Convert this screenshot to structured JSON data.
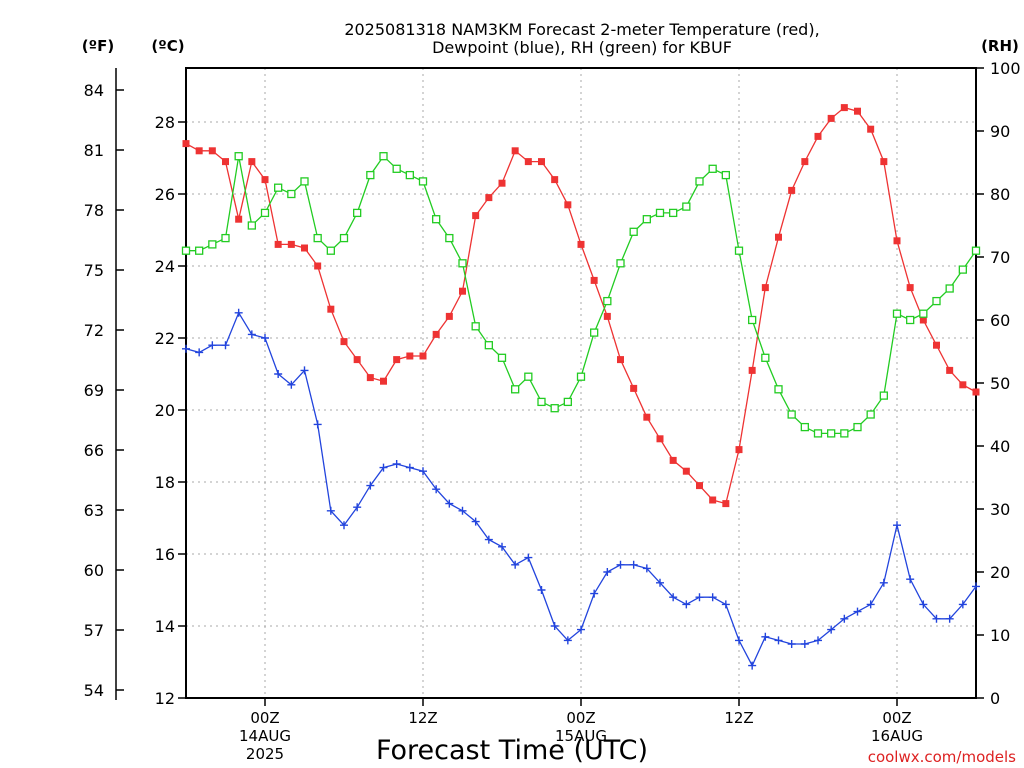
{
  "chart_data": {
    "type": "line",
    "title": [
      "2025081318 NAM3KM Forecast 2-meter Temperature (red),",
      "Dewpoint (blue), RH (green) for KBUF"
    ],
    "xlabel": "Forecast Time (UTC)",
    "unit_f": "(ºF)",
    "unit_c": "(ºC)",
    "unit_rh": "(RH)",
    "credit": "coolwx.com/models",
    "xlim": [
      -6,
      54
    ],
    "ylim_c": [
      12,
      29.5
    ],
    "ylim_rh": [
      0,
      100
    ],
    "grid": true,
    "x_ticks": [
      {
        "x": 0,
        "lines": [
          "00Z",
          "14AUG",
          "2025"
        ]
      },
      {
        "x": 12,
        "lines": [
          "12Z"
        ]
      },
      {
        "x": 24,
        "lines": [
          "00Z",
          "15AUG"
        ]
      },
      {
        "x": 36,
        "lines": [
          "12Z"
        ]
      },
      {
        "x": 48,
        "lines": [
          "00Z",
          "16AUG"
        ]
      }
    ],
    "y_ticks_c": [
      12,
      14,
      16,
      18,
      20,
      22,
      24,
      26,
      28
    ],
    "y_ticks_f": [
      54,
      57,
      60,
      63,
      66,
      69,
      72,
      75,
      78,
      81,
      84
    ],
    "y_ticks_rh": [
      0,
      10,
      20,
      30,
      40,
      50,
      60,
      70,
      80,
      90,
      100
    ],
    "x": [
      -6,
      -5,
      -4,
      -3,
      -2,
      -1,
      0,
      1,
      2,
      3,
      4,
      5,
      6,
      7,
      8,
      9,
      10,
      11,
      12,
      13,
      14,
      15,
      16,
      17,
      18,
      19,
      20,
      21,
      22,
      23,
      24,
      25,
      26,
      27,
      28,
      29,
      30,
      31,
      32,
      33,
      34,
      35,
      36,
      37,
      38,
      39,
      40,
      41,
      42,
      43,
      44,
      45,
      46,
      47,
      48,
      49,
      50,
      51,
      52,
      53,
      54
    ],
    "series": [
      {
        "name": "2-meter Temperature",
        "axis": "left",
        "color": "#ee3333",
        "marker": "square-filled",
        "values": [
          27.4,
          27.2,
          27.2,
          26.9,
          25.3,
          26.9,
          26.4,
          24.6,
          24.6,
          24.5,
          24.0,
          22.8,
          21.9,
          21.4,
          20.9,
          20.8,
          21.4,
          21.5,
          21.5,
          22.1,
          22.6,
          23.3,
          25.4,
          25.9,
          26.3,
          27.2,
          26.9,
          26.9,
          26.4,
          25.7,
          24.6,
          23.6,
          22.6,
          21.4,
          20.6,
          19.8,
          19.2,
          18.6,
          18.3,
          17.9,
          17.5,
          17.4,
          18.9,
          21.1,
          23.4,
          24.8,
          26.1,
          26.9,
          27.6,
          28.1,
          28.4,
          28.3,
          27.8,
          26.9,
          24.7,
          23.4,
          22.5,
          21.8,
          21.1,
          20.7,
          20.5
        ]
      },
      {
        "name": "Dewpoint",
        "axis": "left",
        "color": "#2244dd",
        "marker": "plus",
        "values": [
          21.7,
          21.6,
          21.8,
          21.8,
          22.7,
          22.1,
          22.0,
          21.0,
          20.7,
          21.1,
          19.6,
          17.2,
          16.8,
          17.3,
          17.9,
          18.4,
          18.5,
          18.4,
          18.3,
          17.8,
          17.4,
          17.2,
          16.9,
          16.4,
          16.2,
          15.7,
          15.9,
          15.0,
          14.0,
          13.6,
          13.9,
          14.9,
          15.5,
          15.7,
          15.7,
          15.6,
          15.2,
          14.8,
          14.6,
          14.8,
          14.8,
          14.6,
          13.6,
          12.9,
          13.7,
          13.6,
          13.5,
          13.5,
          13.6,
          13.9,
          14.2,
          14.4,
          14.6,
          15.2,
          16.8,
          15.3,
          14.6,
          14.2,
          14.2,
          14.6,
          15.1
        ]
      },
      {
        "name": "RH",
        "axis": "right",
        "color": "#22cc22",
        "marker": "square-open",
        "values": [
          71,
          71,
          72,
          73,
          86,
          75,
          77,
          81,
          80,
          82,
          73,
          71,
          73,
          77,
          83,
          86,
          84,
          83,
          82,
          76,
          73,
          69,
          59,
          56,
          54,
          49,
          51,
          47,
          46,
          47,
          51,
          58,
          63,
          69,
          74,
          76,
          77,
          77,
          78,
          82,
          84,
          83,
          71,
          60,
          54,
          49,
          45,
          43,
          42,
          42,
          42,
          43,
          45,
          48,
          61,
          60,
          61,
          63,
          65,
          68,
          71
        ]
      }
    ]
  }
}
